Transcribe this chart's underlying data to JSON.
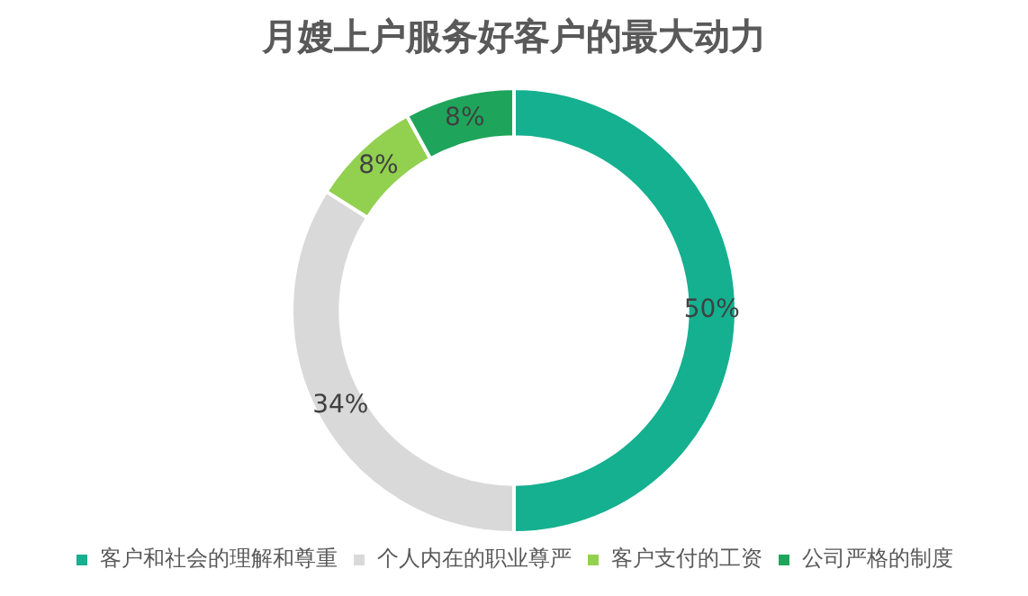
{
  "chart_data": {
    "type": "donut",
    "title": "月嫂上户服务好客户的最大动力",
    "categories": [
      "客户和社会的理解和尊重",
      "个人内在的职业尊严",
      "客户支付的工资",
      "公司严格的制度"
    ],
    "values": [
      50,
      34,
      8,
      8
    ],
    "colors": [
      "#14b08f",
      "#d9d9d9",
      "#92d050",
      "#1ea55b"
    ],
    "value_labels": [
      "50%",
      "34%",
      "8%",
      "8%"
    ],
    "legend": "bottom"
  }
}
